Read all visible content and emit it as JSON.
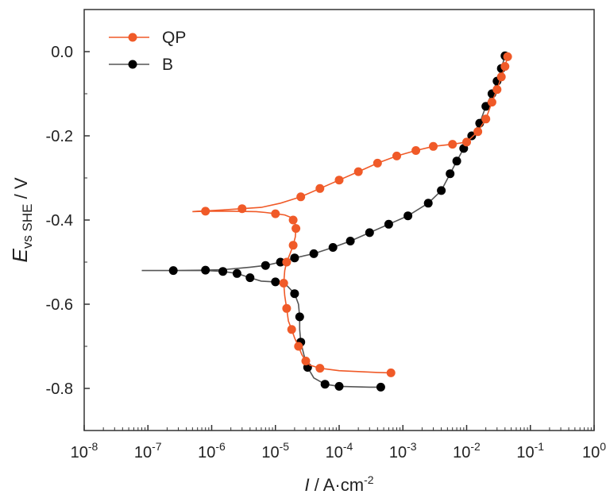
{
  "chart_data": {
    "type": "line",
    "xscale": "log",
    "xlim": [
      1e-08,
      1
    ],
    "ylim": [
      -0.9,
      0.1
    ],
    "x_tick_exponents": [
      "-8",
      "-7",
      "-6",
      "-5",
      "-4",
      "-3",
      "-2",
      "-1",
      "0"
    ],
    "x_tick_base": "10",
    "y_ticks": [
      0.0,
      -0.2,
      -0.4,
      -0.6,
      -0.8
    ],
    "y_tick_labels": [
      "0.0",
      "-0.2",
      "-0.4",
      "-0.6",
      "-0.8"
    ],
    "xlabel": {
      "italic": "I",
      "rest": " / A·cm",
      "sup": "-2"
    },
    "ylabel": {
      "italic": "E",
      "sub": "vs SHE",
      "rest": " / V"
    },
    "grid": false,
    "legend_position": "top-left",
    "series": [
      {
        "name": "QP",
        "color": "#f05a28",
        "x": [
          0.00065,
          0.0004,
          0.0002,
          0.0001,
          5e-05,
          3.5e-05,
          3e-05,
          2.6e-05,
          2.3e-05,
          2e-05,
          1.8e-05,
          1.6e-05,
          1.5e-05,
          1.4e-05,
          1.35e-05,
          1.4e-05,
          1.5e-05,
          1.7e-05,
          1.9e-05,
          2.05e-05,
          2.1e-05,
          2.05e-05,
          1.9e-05,
          1.7e-05,
          1.4e-05,
          1e-05,
          7e-06,
          5e-06,
          2e-06,
          8e-07,
          5e-07,
          6e-07,
          9e-07,
          1.5e-06,
          3e-06,
          6e-06,
          1.2e-05,
          2.5e-05,
          5e-05,
          0.0001,
          0.0002,
          0.0004,
          0.0008,
          0.0016,
          0.003,
          0.006,
          0.01,
          0.015,
          0.02,
          0.025,
          0.03,
          0.035,
          0.04,
          0.044
        ],
        "y": [
          -0.763,
          -0.762,
          -0.76,
          -0.758,
          -0.752,
          -0.745,
          -0.735,
          -0.72,
          -0.7,
          -0.68,
          -0.66,
          -0.64,
          -0.61,
          -0.58,
          -0.55,
          -0.52,
          -0.5,
          -0.48,
          -0.46,
          -0.44,
          -0.42,
          -0.41,
          -0.4,
          -0.393,
          -0.388,
          -0.385,
          -0.382,
          -0.38,
          -0.379,
          -0.379,
          -0.38,
          -0.379,
          -0.378,
          -0.376,
          -0.373,
          -0.37,
          -0.36,
          -0.345,
          -0.325,
          -0.305,
          -0.285,
          -0.265,
          -0.248,
          -0.235,
          -0.225,
          -0.22,
          -0.215,
          -0.19,
          -0.16,
          -0.12,
          -0.09,
          -0.06,
          -0.035,
          -0.012
        ]
      },
      {
        "name": "B",
        "color": "#000000",
        "x": [
          0.00045,
          0.0003,
          0.0001,
          6e-05,
          4e-05,
          3.2e-05,
          2.8e-05,
          2.5e-05,
          2.4e-05,
          2.4e-05,
          2.3e-05,
          2e-05,
          1.5e-05,
          1e-05,
          6e-06,
          4e-06,
          2.5e-06,
          1.5e-06,
          8e-07,
          2.5e-07,
          8e-08,
          2.5e-07,
          8e-07,
          1.5e-06,
          2.5e-06,
          4e-06,
          7e-06,
          1.2e-05,
          2e-05,
          4e-05,
          8e-05,
          0.00015,
          0.0003,
          0.0006,
          0.0012,
          0.0025,
          0.004,
          0.0055,
          0.007,
          0.009,
          0.012,
          0.016,
          0.02,
          0.025,
          0.03,
          0.035,
          0.04
        ],
        "y": [
          -0.797,
          -0.797,
          -0.795,
          -0.79,
          -0.775,
          -0.75,
          -0.72,
          -0.69,
          -0.66,
          -0.63,
          -0.6,
          -0.575,
          -0.555,
          -0.547,
          -0.545,
          -0.537,
          -0.527,
          -0.522,
          -0.52,
          -0.52,
          -0.52,
          -0.52,
          -0.519,
          -0.518,
          -0.515,
          -0.512,
          -0.508,
          -0.5,
          -0.49,
          -0.48,
          -0.465,
          -0.45,
          -0.43,
          -0.41,
          -0.39,
          -0.36,
          -0.33,
          -0.29,
          -0.26,
          -0.23,
          -0.2,
          -0.17,
          -0.13,
          -0.1,
          -0.07,
          -0.04,
          -0.01
        ]
      }
    ],
    "marker_indices": {
      "QP": [
        0,
        4,
        6,
        8,
        10,
        12,
        14,
        16,
        18,
        20,
        22,
        25,
        29,
        34,
        37,
        38,
        39,
        40,
        41,
        42,
        43,
        44,
        45,
        46,
        47,
        48,
        49,
        50,
        51,
        52,
        53
      ],
      "B": [
        0,
        2,
        3,
        5,
        7,
        9,
        11,
        13,
        15,
        16,
        17,
        19,
        22,
        26,
        27,
        28,
        29,
        30,
        31,
        32,
        33,
        34,
        35,
        36,
        37,
        38,
        39,
        40,
        41,
        42,
        43,
        44,
        45,
        46
      ]
    }
  }
}
